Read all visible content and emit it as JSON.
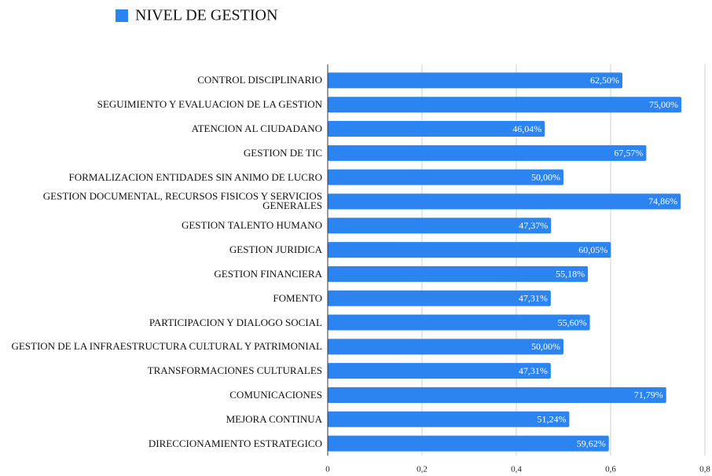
{
  "chart_data": {
    "type": "hbar",
    "categories": [
      "CONTROL DISCIPLINARIO",
      "SEGUIMIENTO Y EVALUACION DE LA GESTION",
      "ATENCION AL CIUDADANO",
      "GESTION DE TIC",
      "FORMALIZACION ENTIDADES SIN ANIMO DE LUCRO",
      "GESTION DOCUMENTAL, RECURSOS FISICOS Y SERVICIOS GENERALES",
      "GESTION TALENTO HUMANO",
      "GESTION JURIDICA",
      "GESTION FINANCIERA",
      "FOMENTO",
      "PARTICIPACION Y DIALOGO SOCIAL",
      "GESTION DE LA INFRAESTRUCTURA CULTURAL Y PATRIMONIAL",
      "TRANSFORMACIONES CULTURALES",
      "COMUNICACIONES",
      "MEJORA CONTINUA",
      "DIRECCIONAMIENTO ESTRATEGICO"
    ],
    "series": [
      {
        "name": "NIVEL DE GESTION",
        "color": "#2b84ef",
        "values": [
          0.625,
          0.75,
          0.4604,
          0.6757,
          0.5,
          0.7486,
          0.4737,
          0.6005,
          0.5518,
          0.4731,
          0.556,
          0.5,
          0.4731,
          0.7179,
          0.5124,
          0.5962
        ],
        "value_labels": [
          "62,50%",
          "75,00%",
          "46,04%",
          "67,57%",
          "50,00%",
          "74,86%",
          "47,37%",
          "60,05%",
          "55,18%",
          "47,31%",
          "55,60%",
          "50,00%",
          "47,31%",
          "71,79%",
          "51,24%",
          "59,62%"
        ]
      }
    ],
    "xlim": [
      0,
      0.8
    ],
    "xticks": [
      0,
      {
        "value": 0.2,
        "label": "0,2"
      },
      {
        "value": 0.4,
        "label": "0,4"
      },
      {
        "value": 0.6,
        "label": "0,6"
      },
      {
        "value": 0.8,
        "label": "0,8"
      }
    ],
    "grid": true,
    "legend": "top"
  }
}
